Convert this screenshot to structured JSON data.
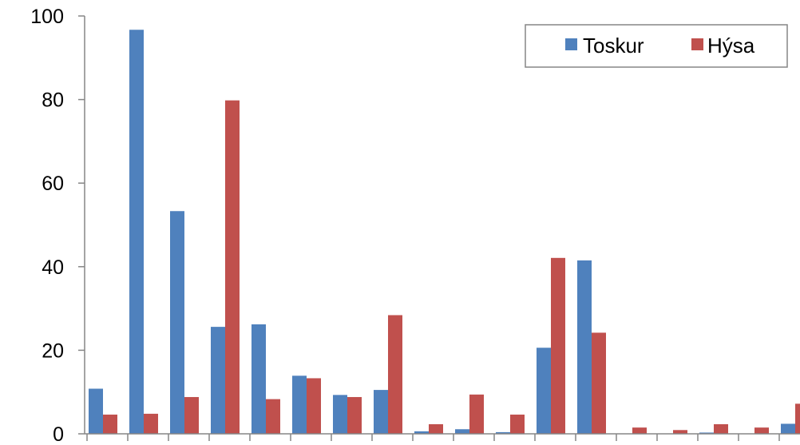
{
  "chart_data": {
    "type": "bar",
    "title": "",
    "xlabel": "",
    "ylabel": "",
    "ylim": [
      0,
      100
    ],
    "yticks": [
      0,
      20,
      40,
      60,
      80,
      100
    ],
    "grid": false,
    "legend_position": "top-right",
    "category_count": 18,
    "series": [
      {
        "name": "Toskur",
        "color": "#4f81bd",
        "values": [
          10.8,
          96.7,
          53.3,
          25.6,
          26.2,
          13.9,
          9.3,
          10.5,
          0.6,
          1.1,
          0.4,
          20.6,
          41.5,
          0.0,
          0.0,
          0.3,
          0.0,
          2.4
        ]
      },
      {
        "name": "Hýsa",
        "color": "#c0504d",
        "values": [
          4.6,
          4.8,
          8.8,
          79.8,
          8.3,
          13.3,
          8.8,
          28.4,
          2.3,
          9.4,
          4.6,
          42.1,
          24.2,
          1.5,
          0.9,
          2.3,
          1.5,
          7.2
        ]
      }
    ]
  }
}
